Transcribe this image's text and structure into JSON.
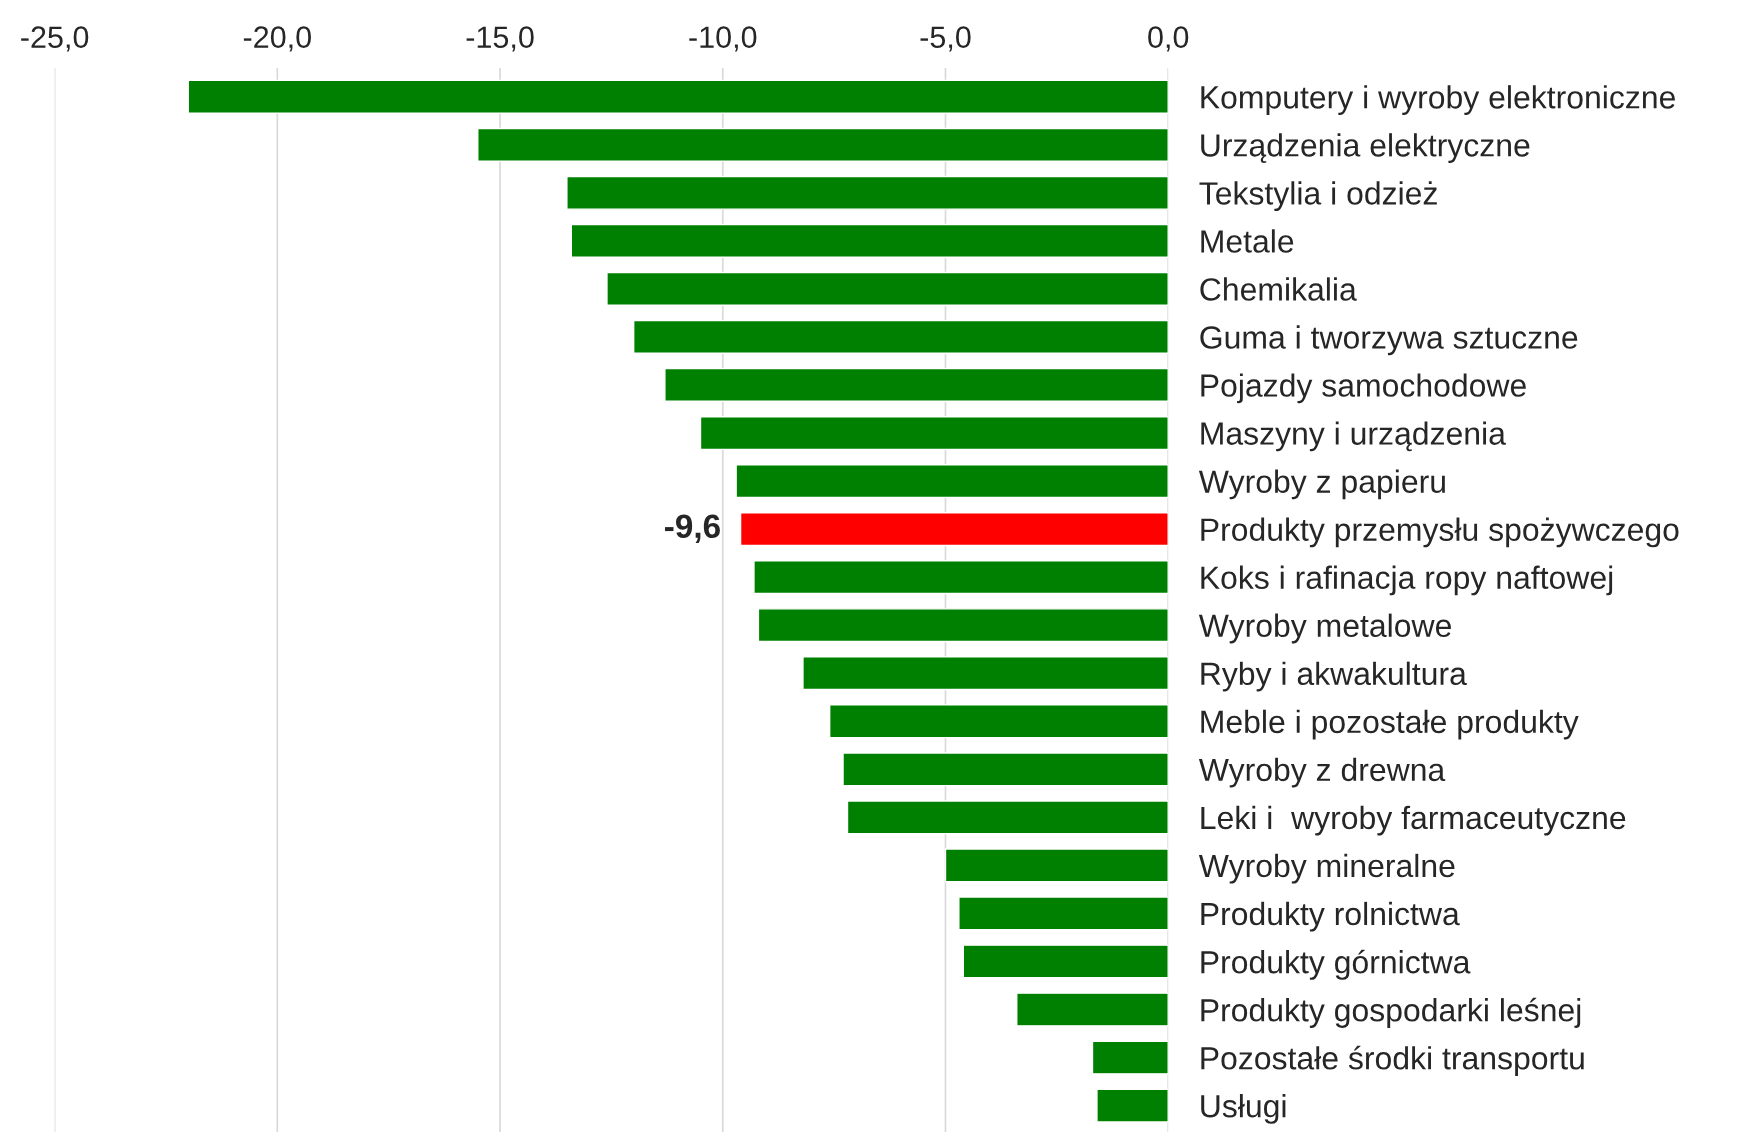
{
  "chart_data": {
    "type": "bar",
    "orientation": "horizontal",
    "categories": [
      "Komputery i wyroby elektroniczne",
      "Urządzenia elektryczne",
      "Tekstylia i odzież",
      "Metale",
      "Chemikalia",
      "Guma i tworzywa sztuczne",
      "Pojazdy samochodowe",
      "Maszyny i urządzenia",
      "Wyroby z papieru",
      "Produkty przemysłu spożywczego",
      "Koks i rafinacja ropy naftowej",
      "Wyroby metalowe",
      "Ryby i akwakultura",
      "Meble i pozostałe produkty",
      "Wyroby z drewna",
      "Leki i  wyroby farmaceutyczne",
      "Wyroby mineralne",
      "Produkty rolnictwa",
      "Produkty górnictwa",
      "Produkty gospodarki leśnej",
      "Pozostałe środki transportu",
      "Usługi"
    ],
    "values": [
      -22.0,
      -15.5,
      -13.5,
      -13.4,
      -12.6,
      -12.0,
      -11.3,
      -10.5,
      -9.7,
      -9.6,
      -9.3,
      -9.2,
      -8.2,
      -7.6,
      -7.3,
      -7.2,
      -5.0,
      -4.7,
      -4.6,
      -3.4,
      -1.7,
      -1.6
    ],
    "colors": [
      "#008000",
      "#008000",
      "#008000",
      "#008000",
      "#008000",
      "#008000",
      "#008000",
      "#008000",
      "#008000",
      "#ff0000",
      "#008000",
      "#008000",
      "#008000",
      "#008000",
      "#008000",
      "#008000",
      "#008000",
      "#008000",
      "#008000",
      "#008000",
      "#008000",
      "#008000"
    ],
    "value_labels": [
      null,
      null,
      null,
      null,
      null,
      null,
      null,
      null,
      null,
      "-9,6",
      null,
      null,
      null,
      null,
      null,
      null,
      null,
      null,
      null,
      null,
      null,
      null
    ],
    "xlim": [
      -25,
      0
    ],
    "xticks": [
      {
        "value": -25,
        "label": "-25,0"
      },
      {
        "value": -20,
        "label": "-20,0"
      },
      {
        "value": -15,
        "label": "-15,0"
      },
      {
        "value": -10,
        "label": "-10,0"
      },
      {
        "value": -5,
        "label": "-5,0"
      },
      {
        "value": 0,
        "label": "0,0"
      }
    ],
    "grid": "x",
    "legend": false
  }
}
